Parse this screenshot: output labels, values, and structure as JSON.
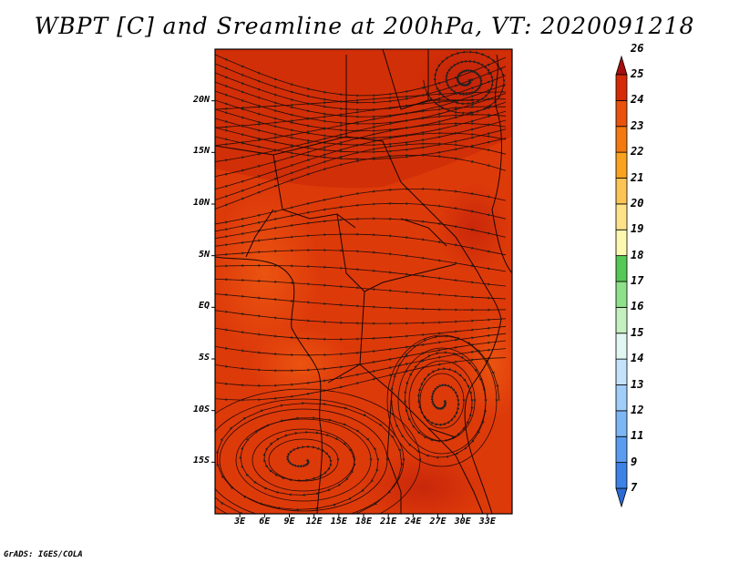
{
  "title": "WBPT [C] and Sreamline at 200hPa, VT: 2020091218",
  "credit": "GrADS: IGES/COLA",
  "map": {
    "variable": "WBPT [C]",
    "overlay": "Streamline",
    "level": "200hPa",
    "valid_time": "2020091218",
    "lon_range": [
      0,
      36
    ],
    "lat_range": [
      -20,
      25
    ],
    "lat_labels": [
      "20N",
      "15N",
      "10N",
      "5N",
      "EQ",
      "5S",
      "10S",
      "15S"
    ],
    "lon_labels": [
      "3E",
      "6E",
      "9E",
      "12E",
      "15E",
      "18E",
      "21E",
      "24E",
      "27E",
      "30E",
      "33E"
    ]
  },
  "colorbar": {
    "labels": [
      "7",
      "9",
      "11",
      "12",
      "13",
      "14",
      "15",
      "16",
      "17",
      "18",
      "19",
      "20",
      "21",
      "22",
      "23",
      "24",
      "25",
      "26"
    ],
    "colors": [
      "#2d6ad6",
      "#3d82e6",
      "#5a9cf0",
      "#7db6f4",
      "#a0cef8",
      "#c4e2fa",
      "#e2f6f2",
      "#c4f0c0",
      "#8fe08a",
      "#55c855",
      "#fdf8b0",
      "#fde28a",
      "#fbc454",
      "#f8a21e",
      "#f27a10",
      "#e8520c",
      "#d52a08",
      "#a50f0f"
    ]
  }
}
